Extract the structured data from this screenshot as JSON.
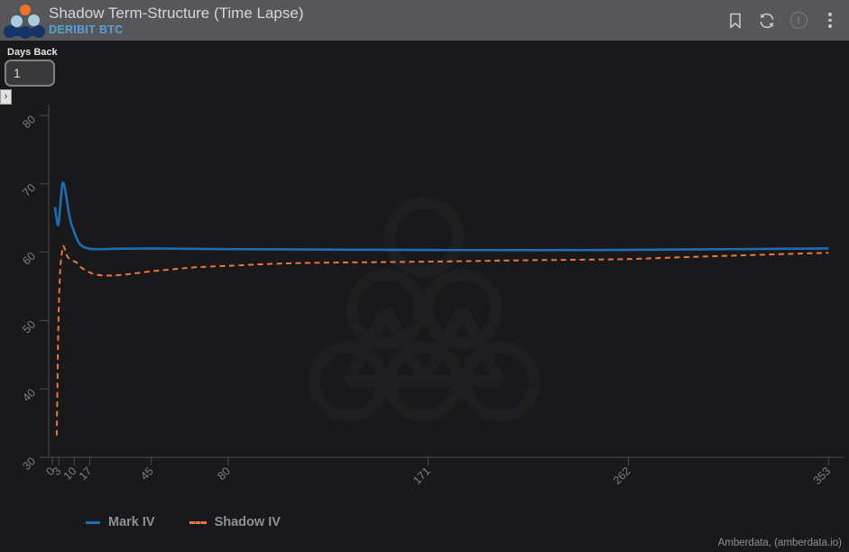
{
  "header": {
    "title": "Shadow Term-Structure (Time Lapse)",
    "subtitle": "DERIBIT BTC",
    "icon_names": [
      "bookmark-icon",
      "refresh-icon",
      "alert-icon",
      "more-menu-icon"
    ],
    "alert_glyph": "!"
  },
  "controls": {
    "days_back_label": "Days Back",
    "days_back_value": "1",
    "expander_glyph": "›"
  },
  "chart_data": {
    "type": "line",
    "title": "Shadow Term-Structure (Time Lapse)",
    "x_ticks": [
      0,
      3,
      10,
      17,
      45,
      80,
      171,
      262,
      353
    ],
    "y_ticks": [
      80,
      70,
      60,
      50,
      40,
      30
    ],
    "xlim": [
      0,
      365
    ],
    "ylim": [
      30,
      80
    ],
    "grid": false,
    "legend_position": "bottom-left",
    "axis_color": "#4a4a4c",
    "tick_label_color": "#7f7f82",
    "background": "#19191b",
    "series": [
      {
        "name": "Mark IV",
        "color": "#1f6cb5",
        "style": "solid",
        "points": [
          [
            1.2,
            66.6
          ],
          [
            1.8,
            65.2
          ],
          [
            2.5,
            64.0
          ],
          [
            3.0,
            64.6
          ],
          [
            3.8,
            67.5
          ],
          [
            4.5,
            69.8
          ],
          [
            5.0,
            70.1
          ],
          [
            5.8,
            69.2
          ],
          [
            6.5,
            67.8
          ],
          [
            8,
            64.9
          ],
          [
            10,
            62.9
          ],
          [
            12,
            61.4
          ],
          [
            14,
            60.8
          ],
          [
            17,
            60.5
          ],
          [
            22,
            60.45
          ],
          [
            30,
            60.5
          ],
          [
            45,
            60.55
          ],
          [
            60,
            60.5
          ],
          [
            80,
            60.45
          ],
          [
            110,
            60.4
          ],
          [
            150,
            60.35
          ],
          [
            200,
            60.3
          ],
          [
            250,
            60.32
          ],
          [
            290,
            60.4
          ],
          [
            320,
            60.47
          ],
          [
            353,
            60.55
          ]
        ]
      },
      {
        "name": "Shadow IV",
        "color": "#e8793a",
        "style": "dashed",
        "points": [
          [
            2,
            33.2
          ],
          [
            2.3,
            40
          ],
          [
            2.8,
            50
          ],
          [
            3.5,
            57
          ],
          [
            4.5,
            60.3
          ],
          [
            5,
            60.9
          ],
          [
            6,
            60.2
          ],
          [
            7,
            59.3
          ],
          [
            9,
            58.8
          ],
          [
            11,
            58.5
          ],
          [
            13,
            57.8
          ],
          [
            16,
            57.2
          ],
          [
            19,
            56.8
          ],
          [
            23,
            56.6
          ],
          [
            28,
            56.6
          ],
          [
            35,
            56.8
          ],
          [
            45,
            57.2
          ],
          [
            55,
            57.5
          ],
          [
            65,
            57.8
          ],
          [
            80,
            58.0
          ],
          [
            100,
            58.3
          ],
          [
            120,
            58.45
          ],
          [
            150,
            58.55
          ],
          [
            180,
            58.65
          ],
          [
            210,
            58.8
          ],
          [
            240,
            58.9
          ],
          [
            262,
            59.0
          ],
          [
            290,
            59.3
          ],
          [
            320,
            59.6
          ],
          [
            340,
            59.8
          ],
          [
            353,
            59.9
          ]
        ]
      }
    ]
  },
  "attribution": "Amberdata, (amberdata.io)"
}
